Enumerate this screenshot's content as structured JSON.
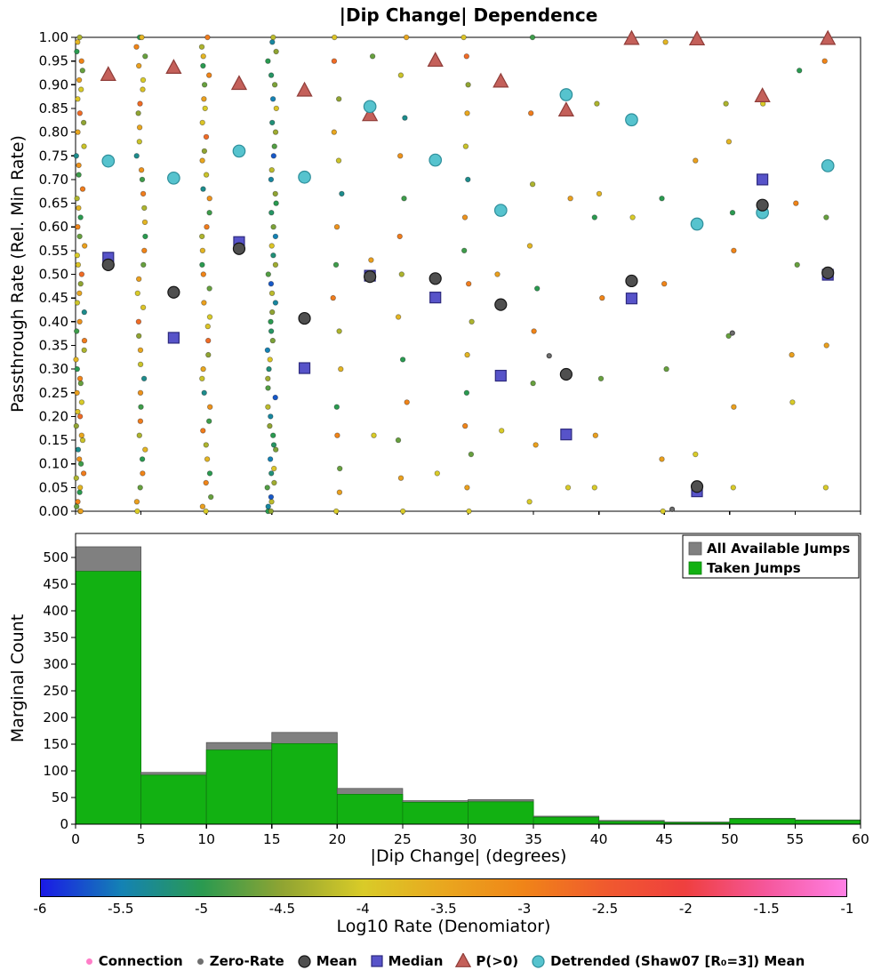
{
  "title": "|Dip Change| Dependence",
  "chart_data": [
    {
      "type": "scatter",
      "ylabel": "Passthrough Rate (Rel. Min Rate)",
      "xlim": [
        0,
        60
      ],
      "ylim": [
        0,
        1
      ],
      "ytick_step": 0.05,
      "xtick_step": 5,
      "series": [
        {
          "name": "Zero-Rate",
          "marker": "circle",
          "fill": "#6f6f6f",
          "edge": "#4a4a4a",
          "size": 5,
          "data_name": "zero-rate-point",
          "x": [
            36.2,
            45.6,
            50.2
          ],
          "y": [
            0.328,
            0.004,
            0.376
          ]
        },
        {
          "name": "P(>0)",
          "marker": "triangle",
          "fill": "#c4605a",
          "edge": "#8f3d39",
          "size": 14,
          "data_name": "p-gt0-marker",
          "x": [
            2.5,
            7.5,
            12.5,
            17.5,
            22.5,
            27.5,
            32.5,
            37.5,
            42.5,
            47.5,
            52.5,
            57.5
          ],
          "y": [
            0.921,
            0.936,
            0.902,
            0.888,
            0.836,
            0.951,
            0.907,
            0.846,
            0.997,
            0.996,
            0.876,
            0.997
          ]
        },
        {
          "name": "Detrended (Shaw07 [R₀=3]) Mean",
          "marker": "circle",
          "fill": "#56c3ce",
          "edge": "#2f8f9b",
          "size": 13.5,
          "data_name": "detrended-mean-marker",
          "x": [
            2.5,
            7.5,
            12.5,
            17.5,
            22.5,
            27.5,
            32.5,
            37.5,
            42.5,
            47.5,
            52.5,
            57.5
          ],
          "y": [
            0.739,
            0.703,
            0.76,
            0.705,
            0.854,
            0.741,
            0.635,
            0.879,
            0.826,
            0.606,
            0.63,
            0.729
          ]
        },
        {
          "name": "Median",
          "marker": "square",
          "fill": "#5753c9",
          "edge": "#2d2a7e",
          "size": 12,
          "data_name": "median-marker",
          "x": [
            2.5,
            7.5,
            12.5,
            17.5,
            22.5,
            27.5,
            32.5,
            37.5,
            42.5,
            47.5,
            52.5,
            57.5
          ],
          "y": [
            0.535,
            0.366,
            0.568,
            0.302,
            0.497,
            0.451,
            0.286,
            0.162,
            0.449,
            0.042,
            0.7,
            0.499
          ]
        },
        {
          "name": "Mean",
          "marker": "circle",
          "fill": "#4f4f4f",
          "edge": "#151515",
          "size": 13,
          "data_name": "mean-marker",
          "x": [
            2.5,
            7.5,
            12.5,
            17.5,
            22.5,
            27.5,
            32.5,
            37.5,
            42.5,
            47.5,
            52.5,
            57.5
          ],
          "y": [
            0.52,
            0.462,
            0.554,
            0.407,
            0.495,
            0.491,
            0.436,
            0.289,
            0.486,
            0.052,
            0.646,
            0.503
          ]
        }
      ],
      "color_cycles": {
        "mixed": [
          -4.0,
          -3.4,
          -4.7,
          -3.0,
          -5.0,
          -3.7,
          -4.3,
          -2.9,
          -4.9,
          -3.2,
          -5.3,
          -4.1,
          -3.5,
          -4.5,
          -2.7,
          -3.9
        ],
        "green": [
          -5.0,
          -4.5,
          -5.4,
          -4.2,
          -5.7,
          -4.8,
          -4.4,
          -5.2,
          -3.9,
          -5.5,
          -4.6,
          -5.1
        ]
      },
      "raw_columns": [
        {
          "x": 0.35,
          "cycle": "mixed",
          "y": [
            0.0,
            0.0,
            0.01,
            0.02,
            0.04,
            0.05,
            0.07,
            0.08,
            0.1,
            0.11,
            0.13,
            0.15,
            0.16,
            0.18,
            0.2,
            0.21,
            0.23,
            0.25,
            0.27,
            0.28,
            0.3,
            0.32,
            0.34,
            0.36,
            0.38,
            0.4,
            0.42,
            0.44,
            0.46,
            0.48,
            0.5,
            0.52,
            0.54,
            0.56,
            0.58,
            0.6,
            0.62,
            0.64,
            0.66,
            0.68,
            0.71,
            0.73,
            0.75,
            0.77,
            0.8,
            0.82,
            0.84,
            0.87,
            0.89,
            0.91,
            0.93,
            0.95,
            0.97,
            0.99,
            1.0
          ]
        },
        {
          "x": 5.0,
          "cycle": "mixed",
          "y": [
            0.0,
            0.02,
            0.05,
            0.08,
            0.11,
            0.13,
            0.16,
            0.19,
            0.22,
            0.25,
            0.28,
            0.31,
            0.34,
            0.37,
            0.4,
            0.43,
            0.46,
            0.49,
            0.52,
            0.55,
            0.58,
            0.61,
            0.64,
            0.67,
            0.7,
            0.72,
            0.75,
            0.78,
            0.81,
            0.84,
            0.86,
            0.89,
            0.91,
            0.94,
            0.96,
            0.98,
            1.0,
            1.0
          ]
        },
        {
          "x": 10.0,
          "cycle": "mixed",
          "y": [
            0.0,
            0.01,
            0.03,
            0.06,
            0.08,
            0.11,
            0.14,
            0.17,
            0.19,
            0.22,
            0.25,
            0.28,
            0.3,
            0.33,
            0.36,
            0.39,
            0.41,
            0.44,
            0.47,
            0.5,
            0.52,
            0.55,
            0.58,
            0.6,
            0.63,
            0.66,
            0.68,
            0.71,
            0.74,
            0.76,
            0.79,
            0.82,
            0.85,
            0.87,
            0.9,
            0.92,
            0.94,
            0.96,
            0.98,
            1.0
          ]
        },
        {
          "x": 15.0,
          "cycle": "green",
          "y": [
            0.0,
            0.0,
            0.01,
            0.02,
            0.03,
            0.05,
            0.06,
            0.08,
            0.09,
            0.11,
            0.13,
            0.14,
            0.16,
            0.18,
            0.2,
            0.22,
            0.24,
            0.26,
            0.28,
            0.3,
            0.32,
            0.34,
            0.36,
            0.38,
            0.4,
            0.42,
            0.44,
            0.46,
            0.48,
            0.5,
            0.52,
            0.54,
            0.56,
            0.58,
            0.6,
            0.63,
            0.65,
            0.67,
            0.7,
            0.72,
            0.75,
            0.77,
            0.8,
            0.82,
            0.85,
            0.87,
            0.9,
            0.92,
            0.95,
            0.97,
            0.99,
            1.0
          ]
        },
        {
          "x": 20.0,
          "cycle": "mixed",
          "y": [
            0.0,
            0.04,
            0.09,
            0.16,
            0.22,
            0.3,
            0.38,
            0.45,
            0.52,
            0.6,
            0.67,
            0.74,
            0.8,
            0.87,
            0.95,
            1.0
          ]
        },
        {
          "x": 25.0,
          "cycle": "mixed",
          "y": [
            0.0,
            0.07,
            0.15,
            0.23,
            0.32,
            0.41,
            0.5,
            0.58,
            0.66,
            0.75,
            0.83,
            0.92,
            1.0
          ]
        },
        {
          "x": 30.0,
          "cycle": "mixed",
          "y": [
            0.0,
            0.05,
            0.12,
            0.18,
            0.25,
            0.33,
            0.4,
            0.48,
            0.55,
            0.62,
            0.7,
            0.77,
            0.84,
            0.9,
            0.96,
            1.0
          ]
        },
        {
          "x": 35.0,
          "cycle": "mixed",
          "y": [
            0.02,
            0.14,
            0.27,
            0.38,
            0.47,
            0.56,
            0.69,
            0.84,
            1.0
          ]
        },
        {
          "x": 40.0,
          "cycle": "mixed",
          "y": [
            0.05,
            0.16,
            0.28,
            0.45,
            0.62,
            0.67,
            0.86
          ]
        },
        {
          "x": 45.0,
          "cycle": "mixed",
          "y": [
            0.0,
            0.11,
            0.3,
            0.48,
            0.66,
            0.99
          ]
        },
        {
          "x": 50.0,
          "cycle": "mixed",
          "y": [
            0.05,
            0.22,
            0.37,
            0.55,
            0.63,
            0.78,
            0.86
          ]
        },
        {
          "x": 55.0,
          "cycle": "mixed",
          "y": [
            0.23,
            0.33,
            0.52,
            0.65,
            0.93
          ]
        },
        {
          "x": 57.5,
          "cycle": "mixed",
          "y": [
            0.05,
            0.35,
            0.62,
            0.95
          ]
        },
        {
          "x": 22.5,
          "cycle": "mixed",
          "y": [
            0.16,
            0.53,
            0.96
          ]
        },
        {
          "x": 27.5,
          "cycle": "mixed",
          "y": [
            0.08,
            0.74
          ]
        },
        {
          "x": 32.5,
          "cycle": "mixed",
          "y": [
            0.17,
            0.5
          ]
        },
        {
          "x": 37.5,
          "cycle": "mixed",
          "y": [
            0.05,
            0.66
          ]
        },
        {
          "x": 42.5,
          "cycle": "mixed",
          "y": [
            0.62
          ]
        },
        {
          "x": 47.5,
          "cycle": "mixed",
          "y": [
            0.12,
            0.74
          ]
        },
        {
          "x": 52.5,
          "cycle": "mixed",
          "y": [
            0.86
          ]
        }
      ]
    },
    {
      "type": "bar",
      "ylabel": "Marginal Count",
      "xlabel": "|Dip Change| (degrees)",
      "xlim": [
        0,
        60
      ],
      "ylim": [
        0,
        545
      ],
      "ytick_step": 50,
      "ytick_max": 500,
      "xtick_step": 5,
      "bin_width": 5,
      "bins": [
        0,
        5,
        10,
        15,
        20,
        25,
        30,
        35,
        40,
        45,
        50,
        55
      ],
      "series": [
        {
          "name": "All Available Jumps",
          "color": "#808080",
          "edge": "#555555",
          "values": [
            520,
            97,
            153,
            172,
            67,
            44,
            46,
            15,
            7,
            4,
            11,
            8
          ]
        },
        {
          "name": "Taken Jumps",
          "color": "#12b112",
          "edge": "#0a800a",
          "values": [
            474,
            92,
            139,
            151,
            56,
            41,
            42,
            13,
            5,
            3,
            10,
            7
          ]
        }
      ],
      "legend": [
        "All Available Jumps",
        "Taken Jumps"
      ]
    }
  ],
  "colorbar": {
    "label": "Log10 Rate (Denomiator)",
    "range": [
      -6,
      -1
    ],
    "tick_labels": [
      "-6",
      "-5.5",
      "-5",
      "-4.5",
      "-4",
      "-3.5",
      "-3",
      "-2.5",
      "-2",
      "-1.5",
      "-1"
    ],
    "tick_values": [
      -6,
      -5.5,
      -5,
      -4.5,
      -4,
      -3.5,
      -3,
      -2.5,
      -2,
      -1.5,
      -1
    ],
    "stops": [
      {
        "v": -6.0,
        "color": "#1a1ae6"
      },
      {
        "v": -5.5,
        "color": "#1482b4"
      },
      {
        "v": -5.0,
        "color": "#2a9a50"
      },
      {
        "v": -4.5,
        "color": "#90a432"
      },
      {
        "v": -4.0,
        "color": "#d9cb28"
      },
      {
        "v": -3.5,
        "color": "#e9a71f"
      },
      {
        "v": -3.0,
        "color": "#f08418"
      },
      {
        "v": -2.5,
        "color": "#f05a2e"
      },
      {
        "v": -2.0,
        "color": "#ef3f3f"
      },
      {
        "v": -1.5,
        "color": "#f5579b"
      },
      {
        "v": -1.0,
        "color": "#ff80e5"
      }
    ]
  },
  "figure_legend": [
    {
      "label": "Connection",
      "marker": "dot",
      "color": "#ff7ec8",
      "size": 7,
      "icon": "connection-dot-icon"
    },
    {
      "label": "Zero-Rate",
      "marker": "dot",
      "color": "#6f6f6f",
      "size": 7,
      "icon": "zero-rate-dot-icon"
    },
    {
      "label": "Mean",
      "marker": "circle",
      "color": "#4f4f4f",
      "edge": "#151515",
      "size": 13,
      "icon": "mean-circle-icon"
    },
    {
      "label": "Median",
      "marker": "square",
      "color": "#5753c9",
      "edge": "#2d2a7e",
      "size": 12,
      "icon": "median-square-icon"
    },
    {
      "label": "P(>0)",
      "marker": "triangle",
      "color": "#c4605a",
      "edge": "#8f3d39",
      "size": 14,
      "icon": "p-gt0-triangle-icon"
    },
    {
      "label": "Detrended (Shaw07 [R₀=3]) Mean",
      "marker": "circle",
      "color": "#56c3ce",
      "edge": "#2f8f9b",
      "size": 13,
      "icon": "detrended-circle-icon"
    }
  ]
}
